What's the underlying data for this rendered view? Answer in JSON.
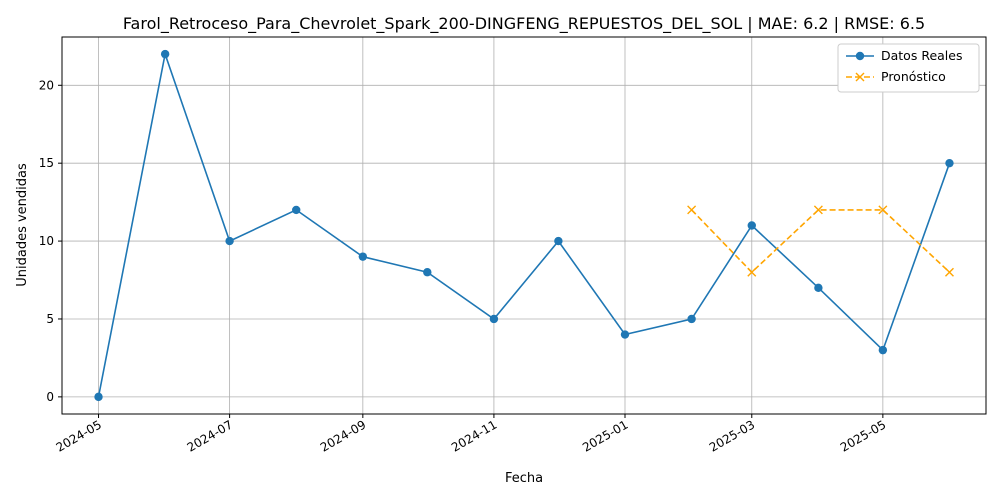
{
  "chart_data": {
    "type": "line",
    "title": "Farol_Retroceso_Para_Chevrolet_Spark_200-DINGFENG_REPUESTOS_DEL_SOL | MAE: 6.2 | RMSE: 6.5",
    "xlabel": "Fecha",
    "ylabel": "Unidades vendidas",
    "x_ticks": [
      "2024-05",
      "2024-07",
      "2024-09",
      "2024-11",
      "2025-01",
      "2025-03",
      "2025-05"
    ],
    "y_ticks": [
      0,
      5,
      10,
      15,
      20
    ],
    "ylim": [
      -1.1,
      23.1
    ],
    "xlim": [
      "2024-04-14",
      "2025-06-18"
    ],
    "grid": true,
    "legend_position": "top-right",
    "series": [
      {
        "name": "Datos Reales",
        "color": "#1f77b4",
        "line_style": "solid",
        "marker": "circle",
        "x": [
          "2024-05-01",
          "2024-06-01",
          "2024-07-01",
          "2024-08-01",
          "2024-09-01",
          "2024-10-01",
          "2024-11-01",
          "2024-12-01",
          "2025-01-01",
          "2025-02-01",
          "2025-03-01",
          "2025-04-01",
          "2025-05-01",
          "2025-06-01"
        ],
        "values": [
          0,
          22,
          10,
          12,
          9,
          8,
          5,
          10,
          4,
          5,
          11,
          7,
          3,
          15
        ]
      },
      {
        "name": "Pronóstico",
        "color": "#ffa500",
        "line_style": "dashed",
        "marker": "x",
        "x": [
          "2025-02-01",
          "2025-03-01",
          "2025-04-01",
          "2025-05-01",
          "2025-06-01"
        ],
        "values": [
          12,
          8,
          12,
          12,
          8
        ]
      }
    ]
  }
}
